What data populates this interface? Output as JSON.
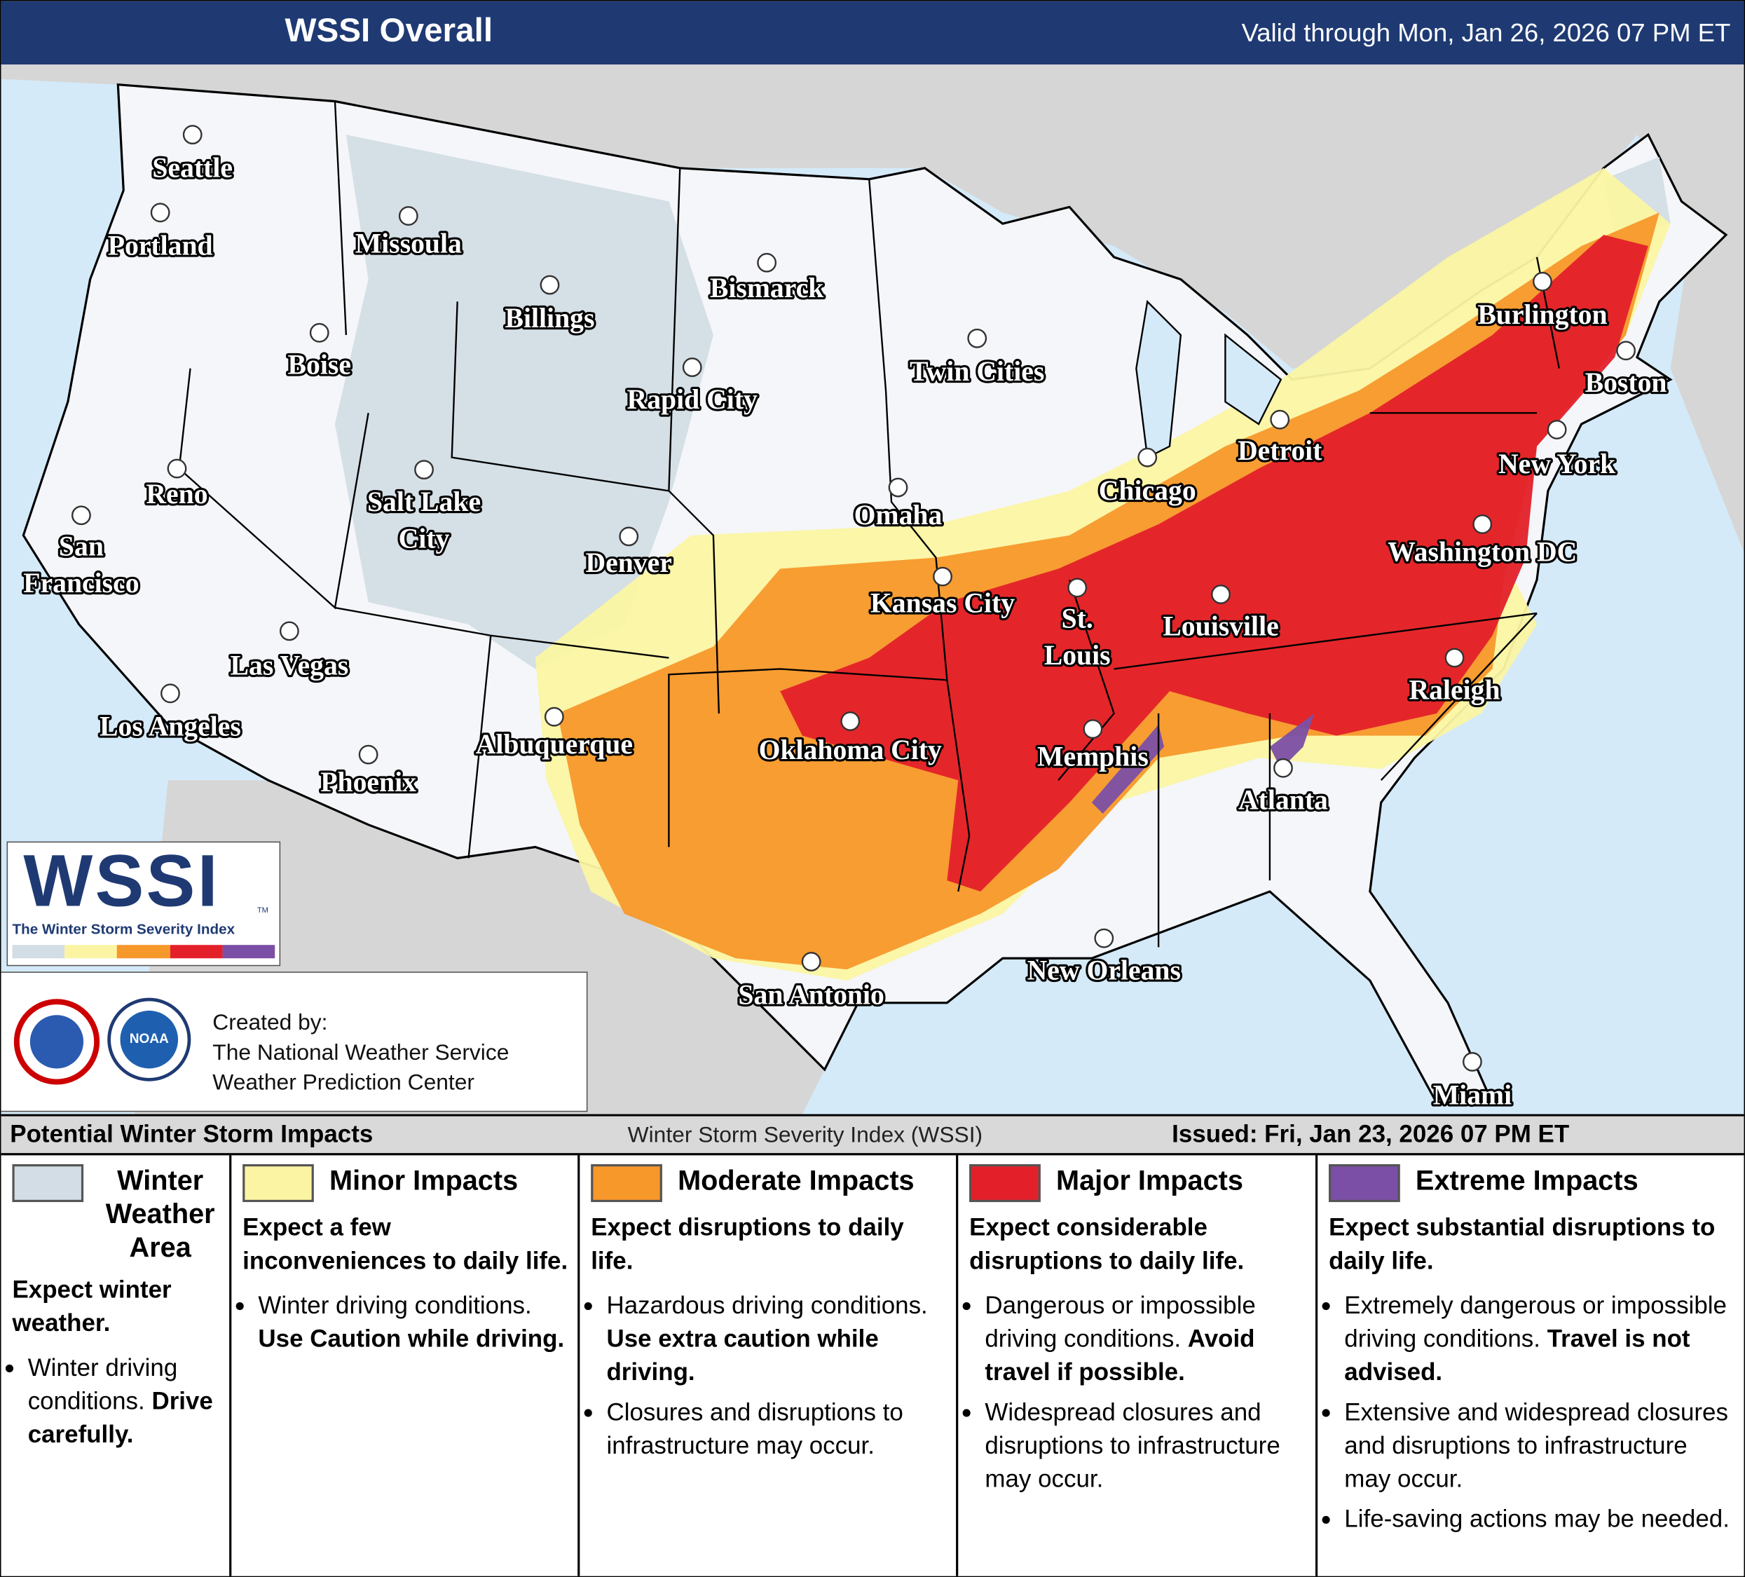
{
  "header": {
    "title": "WSSI Overall",
    "valid": "Valid through Mon, Jan 26, 2026 07 PM ET"
  },
  "map": {
    "cities": [
      "Seattle",
      "Portland",
      "Missoula",
      "Billings",
      "Bismarck",
      "Boise",
      "Rapid City",
      "Twin Cities",
      "Burlington",
      "Boston",
      "Detroit",
      "New York",
      "Chicago",
      "Reno",
      "Salt Lake City",
      "San Francisco",
      "Omaha",
      "Denver",
      "Washington DC",
      "Kansas City",
      "St. Louis",
      "Louisville",
      "Las Vegas",
      "Raleigh",
      "Los Angeles",
      "Albuquerque",
      "Oklahoma City",
      "Memphis",
      "Phoenix",
      "Atlanta",
      "New Orleans",
      "San Antonio",
      "Miami"
    ]
  },
  "logo": {
    "title": "WSSI",
    "trademark": "TM",
    "subtitle": "The Winter Storm Severity Index",
    "noaa": "NOAA"
  },
  "credits": {
    "label": "Created by:",
    "lines": [
      "The National Weather Service",
      "Weather Prediction Center"
    ]
  },
  "legend": {
    "title": "Potential Winter Storm Impacts",
    "index_name": "Winter Storm Severity Index (WSSI)",
    "issued": "Issued: Fri, Jan 23, 2026 07 PM ET",
    "categories": [
      {
        "name": "Winter Weather Area",
        "color": "#d3dde5",
        "summary": "Expect winter weather.",
        "bullets": [
          {
            "text": "Winter driving conditions.",
            "bold": "Drive carefully."
          }
        ]
      },
      {
        "name": "Minor Impacts",
        "color": "#fbf5a3",
        "summary": "Expect a few inconveniences to daily life.",
        "bullets": [
          {
            "text": "Winter driving conditions.",
            "bold": "Use Caution while driving."
          }
        ]
      },
      {
        "name": "Moderate Impacts",
        "color": "#f7982b",
        "summary": "Expect disruptions to daily life.",
        "bullets": [
          {
            "text": "Hazardous driving conditions.",
            "bold": "Use extra caution while driving."
          },
          {
            "text": "Closures and disruptions to infrastructure may occur."
          }
        ]
      },
      {
        "name": "Major Impacts",
        "color": "#e3202a",
        "summary": "Expect considerable disruptions to daily life.",
        "bullets": [
          {
            "text": "Dangerous or impossible driving conditions.",
            "bold": "Avoid travel if possible."
          },
          {
            "text": "Widespread closures and disruptions to infrastructure may occur."
          }
        ]
      },
      {
        "name": "Extreme Impacts",
        "color": "#7b4fa5",
        "summary": "Expect substantial disruptions to daily life.",
        "bullets": [
          {
            "text": "Extremely dangerous or impossible driving conditions.",
            "bold": "Travel is not advised."
          },
          {
            "text": "Extensive and widespread closures and disruptions to infrastructure may occur."
          },
          {
            "text": "Life-saving actions may be needed."
          }
        ]
      }
    ]
  }
}
